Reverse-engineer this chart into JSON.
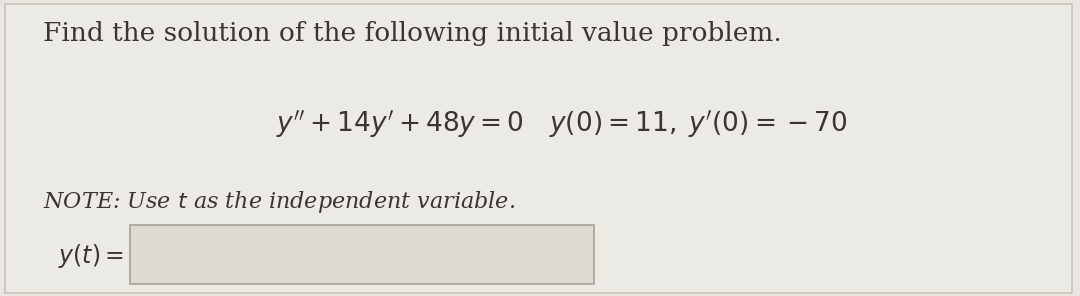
{
  "bg_color": "#e8e6e0",
  "card_color": "#eceae4",
  "card_border_color": "#c8c4bc",
  "title_text": "Find the solution of the following initial value problem.",
  "equation_text": "$y'' + 14y' + 48y = 0 \\quad y(0) = 11,\\; y'(0) = -70$",
  "note_text": "NOTE: Use $t$ as the independent variable.",
  "answer_label": "$y(t) =$",
  "input_box_color": "#dedad4",
  "input_box_border": "#aaa89e",
  "title_fontsize": 19,
  "equation_fontsize": 19,
  "note_fontsize": 16,
  "answer_fontsize": 17,
  "text_color": "#3a3530"
}
